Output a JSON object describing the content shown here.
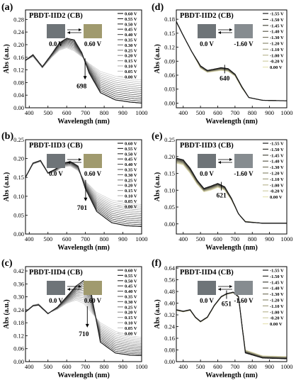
{
  "figure": {
    "panels": [
      {
        "letter": "(a)",
        "title": "PBDT-IID2 (CB)",
        "left_voltage": "0.0 V",
        "right_voltage": "0.60 V",
        "arrow": "right",
        "annotation": "698"
      },
      {
        "letter": "(b)",
        "title": "PBDT-IID3 (CB)",
        "left_voltage": "0.0 V",
        "right_voltage": "0.60 V",
        "arrow": "right",
        "annotation": "701"
      },
      {
        "letter": "(c)",
        "title": "PBDT-IID4 (CB)",
        "left_voltage": "0.0 V",
        "right_voltage": "0.60 V",
        "arrow": "right",
        "annotation": "710"
      },
      {
        "letter": "(d)",
        "title": "PBDT-IID2 (CB)",
        "left_voltage": "0.0 V",
        "right_voltage": "-1.60 V",
        "arrow": "both",
        "annotation": "640"
      },
      {
        "letter": "(e)",
        "title": "PBDT-IID3 (CB)",
        "left_voltage": "0.0 V",
        "right_voltage": "-1.60 V",
        "arrow": "both",
        "annotation": "621"
      },
      {
        "letter": "(f)",
        "title": "PBDT-IID4 (CB)",
        "left_voltage": "0.0 V",
        "right_voltage": "-1.60 V",
        "arrow": "both",
        "annotation": "651"
      }
    ]
  },
  "colors": {
    "oxidation_light": "#d4d4d4",
    "oxidation_dark": "#242424",
    "reduction_light": "#e8e4b8",
    "reduction_dark": "#1a1a1a",
    "swatch_dark": "#6e7478",
    "swatch_olive": "#a09a6e",
    "swatch_grey": "#868c90"
  },
  "chart_data": [
    {
      "type": "line",
      "title": "PBDT-IID2 (CB)",
      "xlabel": "Wavelength (nm)",
      "ylabel": "Abs (a.u.)",
      "xlim": [
        380,
        1000
      ],
      "ylim": [
        0,
        0.31
      ],
      "xticks": [
        "400",
        "500",
        "600",
        "700",
        "800",
        "900",
        "1000"
      ],
      "yticks": [
        "0.00",
        "0.04",
        "0.08",
        "0.12",
        "0.16",
        "0.20",
        "0.24",
        "0.28"
      ],
      "legend": [
        "0.60 V",
        "0.55 V",
        "0.50 V",
        "0.45 V",
        "0.40 V",
        "0.35 V",
        "0.30 V",
        "0.25 V",
        "0.20 V",
        "0.15 V",
        "0.10 V",
        "0.05 V",
        "0.00 V"
      ],
      "legend_position": "right",
      "series_first": {
        "x": [
          380,
          420,
          470,
          520,
          560,
          600,
          640,
          680,
          720,
          780,
          860,
          940,
          1000
        ],
        "values": [
          0.15,
          0.162,
          0.126,
          0.16,
          0.182,
          0.19,
          0.18,
          0.162,
          0.14,
          0.115,
          0.1,
          0.092,
          0.088
        ]
      },
      "series_last": {
        "x": [
          380,
          420,
          470,
          520,
          560,
          600,
          640,
          680,
          720,
          780,
          860,
          940,
          1000
        ],
        "values": [
          0.15,
          0.168,
          0.13,
          0.17,
          0.205,
          0.22,
          0.215,
          0.175,
          0.11,
          0.048,
          0.025,
          0.018,
          0.015
        ]
      },
      "annotation": {
        "text": "698",
        "x": 698
      }
    },
    {
      "type": "line",
      "title": "PBDT-IID3 (CB)",
      "xlabel": "Wavelength (nm)",
      "ylabel": "Abs (a.u.)",
      "xlim": [
        380,
        1000
      ],
      "ylim": [
        0,
        0.25
      ],
      "xticks": [
        "400",
        "500",
        "600",
        "700",
        "800",
        "900",
        "1000"
      ],
      "yticks": [
        "0.00",
        "0.05",
        "0.10",
        "0.15",
        "0.20",
        "0.25"
      ],
      "legend": [
        "0.60 V",
        "0.55 V",
        "0.50 V",
        "0.45 V",
        "0.40 V",
        "0.35 V",
        "0.30 V",
        "0.25 V",
        "0.20 V",
        "0.15 V",
        "0.10 V",
        "0.05 V",
        "0.00 V"
      ],
      "legend_position": "right",
      "series_first": {
        "x": [
          380,
          420,
          460,
          500,
          540,
          580,
          620,
          660,
          700,
          760,
          840,
          920,
          1000
        ],
        "values": [
          0.15,
          0.185,
          0.192,
          0.16,
          0.165,
          0.178,
          0.18,
          0.168,
          0.14,
          0.11,
          0.09,
          0.082,
          0.078
        ]
      },
      "series_last": {
        "x": [
          380,
          420,
          460,
          500,
          540,
          580,
          620,
          660,
          700,
          760,
          840,
          920,
          1000
        ],
        "values": [
          0.15,
          0.188,
          0.195,
          0.162,
          0.172,
          0.188,
          0.192,
          0.18,
          0.12,
          0.06,
          0.03,
          0.022,
          0.02
        ]
      },
      "annotation": {
        "text": "701",
        "x": 701
      }
    },
    {
      "type": "line",
      "title": "PBDT-IID4 (CB)",
      "xlabel": "Wavelength (nm)",
      "ylabel": "Abs (a.u.)",
      "xlim": [
        380,
        1000
      ],
      "ylim": [
        0,
        0.44
      ],
      "xticks": [
        "400",
        "500",
        "600",
        "700",
        "800",
        "900",
        "1000"
      ],
      "yticks": [
        "0.00",
        "0.06",
        "0.12",
        "0.18",
        "0.24",
        "0.30",
        "0.36",
        "0.42"
      ],
      "legend": [
        "0.60 V",
        "0.55 V",
        "0.50 V",
        "0.45 V",
        "0.40 V",
        "0.35 V",
        "0.30 V",
        "0.25 V",
        "0.20 V",
        "0.15 V",
        "0.10 V",
        "0.05 V",
        "0.00 V"
      ],
      "legend_position": "right",
      "series_first": {
        "x": [
          380,
          420,
          450,
          500,
          550,
          600,
          650,
          690,
          730,
          780,
          860,
          940,
          1000
        ],
        "values": [
          0.23,
          0.262,
          0.268,
          0.225,
          0.242,
          0.27,
          0.285,
          0.27,
          0.23,
          0.18,
          0.14,
          0.12,
          0.112
        ]
      },
      "series_last": {
        "x": [
          380,
          420,
          450,
          500,
          550,
          600,
          650,
          690,
          730,
          780,
          860,
          940,
          1000
        ],
        "values": [
          0.23,
          0.258,
          0.262,
          0.222,
          0.252,
          0.3,
          0.35,
          0.375,
          0.32,
          0.09,
          0.04,
          0.03,
          0.028
        ]
      },
      "annotation": {
        "text": "710",
        "x": 710
      }
    },
    {
      "type": "line",
      "title": "PBDT-IID2 (CB)",
      "xlabel": "Wavelength (nm)",
      "ylabel": "Abs (a.u.)",
      "xlim": [
        360,
        1000
      ],
      "ylim": [
        -0.01,
        0.2
      ],
      "xticks": [
        "400",
        "500",
        "600",
        "700",
        "800",
        "900",
        "1000"
      ],
      "yticks": [
        "0.00",
        "0.03",
        "0.06",
        "0.09",
        "0.12",
        "0.15",
        "0.18"
      ],
      "legend": [
        "-1.55 V",
        "-1.50 V",
        "-1.45 V",
        "-1.40 V",
        "-1.30 V",
        "-1.20 V",
        "-1.10 V",
        "-1.00 V",
        "-0.20 V",
        "0.00 V"
      ],
      "legend_position": "right",
      "series_first": {
        "x": [
          360,
          400,
          450,
          500,
          540,
          580,
          620,
          660,
          700,
          740,
          780,
          860,
          1000
        ],
        "values": [
          0.175,
          0.145,
          0.11,
          0.075,
          0.066,
          0.068,
          0.07,
          0.068,
          0.058,
          0.032,
          0.012,
          0.006,
          0.005
        ]
      },
      "series_last": {
        "x": [
          360,
          400,
          450,
          500,
          540,
          580,
          620,
          660,
          700,
          740,
          780,
          860,
          1000
        ],
        "values": [
          0.175,
          0.145,
          0.11,
          0.08,
          0.07,
          0.073,
          0.076,
          0.074,
          0.062,
          0.035,
          0.012,
          0.006,
          0.005
        ]
      },
      "annotation": {
        "text": "640",
        "x": 640
      }
    },
    {
      "type": "line",
      "title": "PBDT-IID3 (CB)",
      "xlabel": "Wavelength (nm)",
      "ylabel": "Abs (a.u.)",
      "xlim": [
        360,
        1000
      ],
      "ylim": [
        -0.03,
        0.25
      ],
      "xticks": [
        "400",
        "500",
        "600",
        "700",
        "800",
        "900",
        "1000"
      ],
      "yticks": [
        "0.00",
        "0.05",
        "0.10",
        "0.15",
        "0.20",
        "0.25"
      ],
      "legend": [
        "-1.55 V",
        "-1.50 V",
        "-1.45 V",
        "-1.40 V",
        "-1.30 V",
        "-1.20 V",
        "-1.10 V",
        "-1.00 V",
        "-0.20 V",
        "0.00 V"
      ],
      "legend_position": "right",
      "series_first": {
        "x": [
          360,
          400,
          440,
          480,
          520,
          560,
          600,
          640,
          680,
          720,
          760,
          860,
          1000
        ],
        "values": [
          0.18,
          0.175,
          0.15,
          0.118,
          0.095,
          0.1,
          0.108,
          0.1,
          0.07,
          0.03,
          0.008,
          0.002,
          0.002
        ]
      },
      "series_last": {
        "x": [
          360,
          400,
          440,
          480,
          520,
          560,
          600,
          640,
          680,
          720,
          760,
          860,
          1000
        ],
        "values": [
          0.195,
          0.19,
          0.165,
          0.13,
          0.105,
          0.112,
          0.12,
          0.11,
          0.075,
          0.03,
          0.006,
          0.002,
          0.002
        ]
      },
      "annotation": {
        "text": "621",
        "x": 621
      }
    },
    {
      "type": "line",
      "title": "PBDT-IID4 (CB)",
      "xlabel": "Wavelength (nm)",
      "ylabel": "Abs (a.u.)",
      "xlim": [
        360,
        1000
      ],
      "ylim": [
        0,
        0.65
      ],
      "xticks": [
        "400",
        "500",
        "600",
        "700",
        "800",
        "900",
        "1000"
      ],
      "yticks": [
        "0.00",
        "0.08",
        "0.16",
        "0.24",
        "0.32",
        "0.40",
        "0.48",
        "0.56",
        "0.64"
      ],
      "legend": [
        "-1.55 V",
        "-1.50 V",
        "-1.45 V",
        "-1.40 V",
        "-1.30 V",
        "-1.20 V",
        "-1.10 V",
        "-1.00 V",
        "-0.20 V",
        "0.00 V"
      ],
      "legend_position": "right",
      "series_first": {
        "x": [
          360,
          400,
          440,
          470,
          500,
          540,
          580,
          620,
          651,
          690,
          720,
          760,
          860,
          1000
        ],
        "values": [
          0.35,
          0.34,
          0.35,
          0.3,
          0.27,
          0.3,
          0.38,
          0.44,
          0.46,
          0.47,
          0.44,
          0.08,
          0.04,
          0.035
        ]
      },
      "series_last": {
        "x": [
          360,
          400,
          440,
          470,
          500,
          540,
          580,
          620,
          651,
          690,
          720,
          760,
          860,
          1000
        ],
        "values": [
          0.355,
          0.345,
          0.355,
          0.305,
          0.275,
          0.305,
          0.385,
          0.445,
          0.465,
          0.475,
          0.445,
          0.06,
          0.025,
          0.02
        ]
      },
      "annotation": {
        "text": "651",
        "x": 651
      }
    }
  ]
}
